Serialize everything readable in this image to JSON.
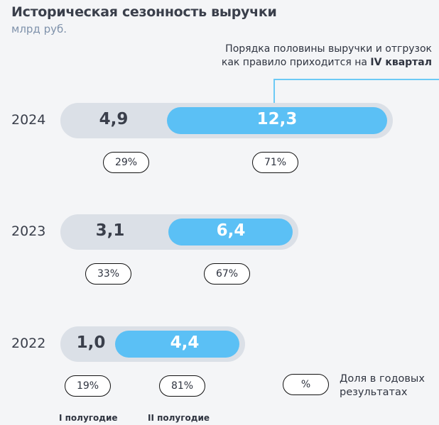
{
  "header": {
    "title": "Историческая сезонность выручки",
    "subtitle": "млрд руб."
  },
  "note": {
    "line1": "Порядка половины выручки и отгрузок",
    "line2_prefix": "как правило приходится на ",
    "line2_bold": "IV квартал"
  },
  "legend": {
    "badge": "%",
    "text_line1": "Доля в годовых",
    "text_line2": "результатах"
  },
  "half_labels": {
    "first": "I полугодие",
    "second": "II полугодие"
  },
  "colors": {
    "first_half": "#dbe0e7",
    "second_half": "#5bc0f5",
    "background": "#f4f5f7"
  },
  "chart_data": {
    "type": "bar",
    "orientation": "horizontal-stacked",
    "title": "Историческая сезонность выручки",
    "unit": "млрд руб.",
    "categories": [
      "2024",
      "2023",
      "2022"
    ],
    "series": [
      {
        "name": "I полугодие",
        "values": [
          "4,9",
          "3,1",
          "1,0"
        ],
        "shares": [
          "29%",
          "33%",
          "19%"
        ]
      },
      {
        "name": "II полугодие",
        "values": [
          "12,3",
          "6,4",
          "4,4"
        ],
        "shares": [
          "71%",
          "67%",
          "81%"
        ]
      }
    ]
  }
}
